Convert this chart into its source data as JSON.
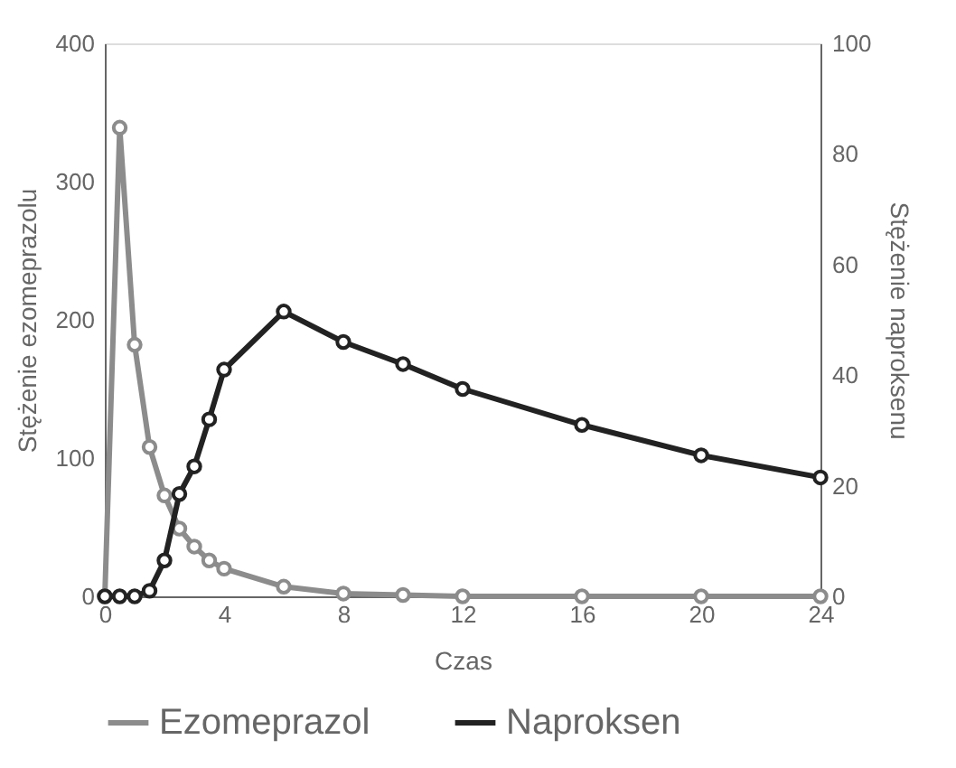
{
  "chart_data": {
    "type": "line",
    "xlabel": "Czas",
    "ylabel": "Stężenie ezomeprazolu",
    "y2label": "Stężenie naproksenu",
    "xlim": [
      0,
      24
    ],
    "xticks": [
      0,
      4,
      8,
      12,
      16,
      20,
      24
    ],
    "ylim": [
      0,
      400
    ],
    "yticks": [
      0,
      100,
      200,
      300,
      400
    ],
    "y2lim": [
      0,
      100
    ],
    "y2ticks": [
      0,
      20,
      40,
      60,
      80,
      100
    ],
    "grid": false,
    "legend": "bottom",
    "marker": "circle",
    "line_style": "solid",
    "series": [
      {
        "name": "Ezomeprazol",
        "color": "#8c8c8c",
        "x": [
          0,
          0.5,
          1,
          1.5,
          2,
          2.5,
          3,
          3.5,
          4,
          6,
          8,
          10,
          12,
          16,
          20,
          24
        ],
        "values": [
          0,
          339,
          182,
          108,
          73,
          49,
          36,
          26,
          20,
          7,
          2,
          1,
          0,
          0,
          0,
          0
        ]
      },
      {
        "name": "Naproksen",
        "color": "#222222",
        "axis": "y2",
        "x": [
          0,
          0.5,
          1,
          1.5,
          2,
          2.5,
          3,
          3.5,
          4,
          6,
          8,
          10,
          12,
          16,
          20,
          24
        ],
        "values": [
          0,
          0,
          0,
          1,
          6.5,
          18.5,
          23.5,
          32,
          41,
          51.5,
          46,
          42,
          37.5,
          31,
          25.5,
          21.5
        ]
      }
    ]
  }
}
